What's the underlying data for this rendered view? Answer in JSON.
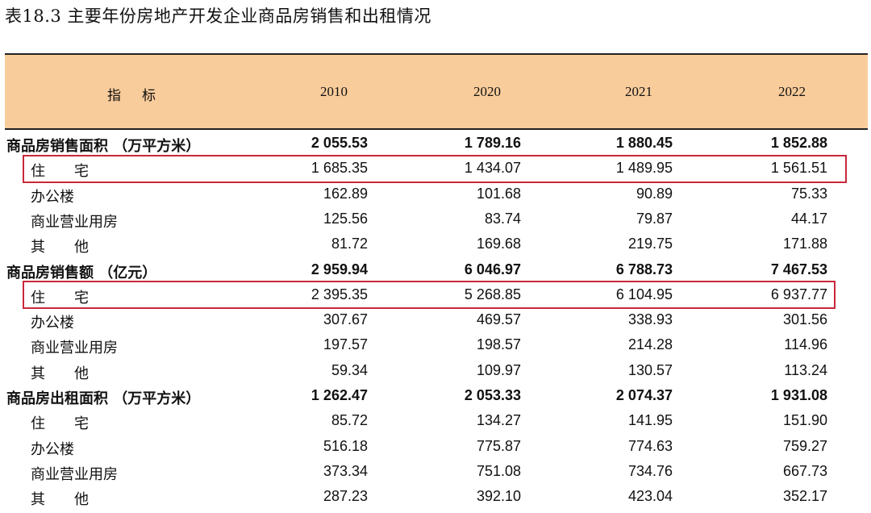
{
  "title": "表18.3  主要年份房地产开发企业商品房销售和出租情况",
  "header": {
    "indicator": "指标",
    "years": [
      "2010",
      "2020",
      "2021",
      "2022"
    ]
  },
  "rows": [
    {
      "label": "商品房销售面积 （万平方米）",
      "type": "bold",
      "values": [
        "2 055.53",
        "1 789.16",
        "1 880.45",
        "1 852.88"
      ]
    },
    {
      "label": "住宅",
      "type": "sub",
      "spaced": true,
      "highlight": true,
      "values": [
        "1 685.35",
        "1 434.07",
        "1 489.95",
        "1 561.51"
      ]
    },
    {
      "label": "办公楼",
      "type": "sub",
      "values": [
        "162.89",
        "101.68",
        "90.89",
        "75.33"
      ]
    },
    {
      "label": "商业营业用房",
      "type": "sub",
      "values": [
        "125.56",
        "83.74",
        "79.87",
        "44.17"
      ]
    },
    {
      "label": "其他",
      "type": "sub",
      "spaced": true,
      "values": [
        "81.72",
        "169.68",
        "219.75",
        "171.88"
      ]
    },
    {
      "label": "商品房销售额 （亿元）",
      "type": "bold",
      "values": [
        "2 959.94",
        "6 046.97",
        "6 788.73",
        "7 467.53"
      ]
    },
    {
      "label": "住宅",
      "type": "sub",
      "spaced": true,
      "highlight": true,
      "values": [
        "2 395.35",
        "5 268.85",
        "6 104.95",
        "6 937.77"
      ]
    },
    {
      "label": "办公楼",
      "type": "sub",
      "values": [
        "307.67",
        "469.57",
        "338.93",
        "301.56"
      ]
    },
    {
      "label": "商业营业用房",
      "type": "sub",
      "values": [
        "197.57",
        "198.57",
        "214.28",
        "114.96"
      ]
    },
    {
      "label": "其他",
      "type": "sub",
      "spaced": true,
      "values": [
        "59.34",
        "109.97",
        "130.57",
        "113.24"
      ]
    },
    {
      "label": "商品房出租面积 （万平方米）",
      "type": "bold",
      "values": [
        "1 262.47",
        "2 053.33",
        "2 074.37",
        "1 931.08"
      ]
    },
    {
      "label": "住宅",
      "type": "sub",
      "spaced": true,
      "values": [
        "85.72",
        "134.27",
        "141.95",
        "151.90"
      ]
    },
    {
      "label": "办公楼",
      "type": "sub",
      "values": [
        "516.18",
        "775.87",
        "774.63",
        "759.27"
      ]
    },
    {
      "label": "商业营业用房",
      "type": "sub",
      "values": [
        "373.34",
        "751.08",
        "734.76",
        "667.73"
      ]
    },
    {
      "label": "其他",
      "type": "sub",
      "spaced": true,
      "values": [
        "287.23",
        "392.10",
        "423.04",
        "352.17"
      ]
    }
  ],
  "colors": {
    "header_bg": "#f9cc9b",
    "highlight_border": "#c8283a"
  }
}
